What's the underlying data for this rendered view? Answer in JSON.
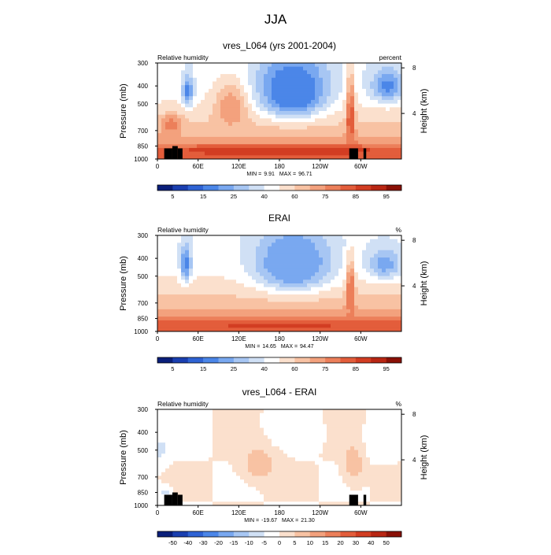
{
  "figure_title": "JJA",
  "colors": {
    "rh_scale": [
      "#0a1f7a",
      "#1a3fb0",
      "#2f63d4",
      "#4b86e8",
      "#79a8f0",
      "#a7c6f3",
      "#d0e0f5",
      "#ffffff",
      "#fbe0cd",
      "#f8c2a3",
      "#f3a17d",
      "#ec7f5a",
      "#e35d3b",
      "#d23d22",
      "#b82613",
      "#8a1006"
    ],
    "diff_scale": [
      "#0a1f7a",
      "#1a3fb0",
      "#2f63d4",
      "#4b86e8",
      "#79a8f0",
      "#a7c6f3",
      "#d0e0f5",
      "#ffffff",
      "#fbe0cd",
      "#f8c2a3",
      "#f3a17d",
      "#ec7f5a",
      "#e35d3b",
      "#d23d22",
      "#b82613",
      "#8a1006"
    ],
    "terrain": "#000000"
  },
  "chart_data": [
    {
      "type": "heatmap",
      "title": "vres_L064 (yrs 2001-2004)",
      "left_label": "Relative humidity",
      "right_label": "percent",
      "ylabel": "Pressure (mb)",
      "right_axis_label": "Height (km)",
      "x_ticks": [
        "0",
        "60E",
        "120E",
        "180",
        "120W",
        "60W"
      ],
      "x_tick_values": [
        0,
        60,
        120,
        180,
        240,
        300
      ],
      "xlim": [
        0,
        360
      ],
      "y_ticks": [
        "300",
        "400",
        "500",
        "700",
        "850",
        "1000"
      ],
      "y_tick_values": [
        300,
        400,
        500,
        700,
        850,
        1000
      ],
      "ylim": [
        300,
        1000
      ],
      "height_ticks": [
        "8",
        "4"
      ],
      "height_tick_values": [
        8,
        4
      ],
      "colorbar_labels": [
        "5",
        "15",
        "25",
        "40",
        "60",
        "75",
        "85",
        "95"
      ],
      "min_label": "MIN =",
      "min_value": "9.91",
      "max_label": "MAX =",
      "max_value": "96.71",
      "features": [
        {
          "lon": 45,
          "p": 430,
          "v": 20,
          "rx": 8,
          "rp": 80
        },
        {
          "lon": 20,
          "p": 650,
          "v": 75,
          "rx": 15,
          "rp": 80
        },
        {
          "lon": 110,
          "p": 520,
          "v": 70,
          "rx": 25,
          "rp": 150
        },
        {
          "lon": 200,
          "p": 440,
          "v": 10,
          "rx": 35,
          "rp": 120
        },
        {
          "lon": 200,
          "p": 400,
          "v": 18,
          "rx": 50,
          "rp": 150
        },
        {
          "lon": 285,
          "p": 600,
          "v": 85,
          "rx": 6,
          "rp": 250
        },
        {
          "lon": 340,
          "p": 400,
          "v": 20,
          "rx": 25,
          "rp": 80
        },
        {
          "lon": 180,
          "p": 900,
          "v": 90,
          "rx": 200,
          "rp": 60
        }
      ],
      "terrain": [
        {
          "lon0": 10,
          "lon1": 22,
          "p_top": 875
        },
        {
          "lon0": 22,
          "lon1": 30,
          "p_top": 850
        },
        {
          "lon0": 30,
          "lon1": 37,
          "p_top": 875
        },
        {
          "lon0": 283,
          "lon1": 296,
          "p_top": 875
        },
        {
          "lon0": 304,
          "lon1": 308,
          "p_top": 875
        }
      ]
    },
    {
      "type": "heatmap",
      "title": "ERAI",
      "left_label": "Relative humidity",
      "right_label": "%",
      "ylabel": "Pressure (mb)",
      "right_axis_label": "Height (km)",
      "x_ticks": [
        "0",
        "60E",
        "120E",
        "180",
        "120W",
        "60W"
      ],
      "x_tick_values": [
        0,
        60,
        120,
        180,
        240,
        300
      ],
      "xlim": [
        0,
        360
      ],
      "y_ticks": [
        "300",
        "400",
        "500",
        "700",
        "850",
        "1000"
      ],
      "y_tick_values": [
        300,
        400,
        500,
        700,
        850,
        1000
      ],
      "ylim": [
        300,
        1000
      ],
      "height_ticks": [
        "8",
        "4"
      ],
      "height_tick_values": [
        8,
        4
      ],
      "colorbar_labels": [
        "5",
        "15",
        "25",
        "40",
        "60",
        "75",
        "85",
        "95"
      ],
      "min_label": "MIN =",
      "min_value": "14.65",
      "max_label": "MAX =",
      "max_value": "94.47",
      "features": [
        {
          "lon": 42,
          "p": 430,
          "v": 20,
          "rx": 8,
          "rp": 100
        },
        {
          "lon": 200,
          "p": 430,
          "v": 15,
          "rx": 40,
          "rp": 120
        },
        {
          "lon": 200,
          "p": 420,
          "v": 25,
          "rx": 55,
          "rp": 160
        },
        {
          "lon": 335,
          "p": 430,
          "v": 25,
          "rx": 25,
          "rp": 80
        },
        {
          "lon": 285,
          "p": 600,
          "v": 80,
          "rx": 6,
          "rp": 200
        },
        {
          "lon": 180,
          "p": 920,
          "v": 85,
          "rx": 200,
          "rp": 60
        }
      ],
      "terrain": []
    },
    {
      "type": "heatmap",
      "title": "vres_L064 - ERAI",
      "left_label": "Relative humidity",
      "right_label": "%",
      "ylabel": "Pressure (mb)",
      "right_axis_label": "Height (km)",
      "x_ticks": [
        "0",
        "60E",
        "120E",
        "180",
        "120W",
        "60W"
      ],
      "x_tick_values": [
        0,
        60,
        120,
        180,
        240,
        300
      ],
      "xlim": [
        0,
        360
      ],
      "y_ticks": [
        "300",
        "400",
        "500",
        "700",
        "850",
        "1000"
      ],
      "y_tick_values": [
        300,
        400,
        500,
        700,
        850,
        1000
      ],
      "ylim": [
        300,
        1000
      ],
      "height_ticks": [
        "8",
        "4"
      ],
      "height_tick_values": [
        8,
        4
      ],
      "colorbar_labels": [
        "-50",
        "-40",
        "-30",
        "-20",
        "-15",
        "-10",
        "-5",
        "0",
        "5",
        "10",
        "15",
        "20",
        "30",
        "40",
        "50"
      ],
      "min_label": "MIN =",
      "min_value": "-19.67",
      "max_label": "MAX =",
      "max_value": "21.30",
      "features": [
        {
          "lon": 150,
          "p": 600,
          "v": 12,
          "rx": 25,
          "rp": 130
        },
        {
          "lon": 290,
          "p": 600,
          "v": 12,
          "rx": 15,
          "rp": 150
        },
        {
          "lon": 5,
          "p": 500,
          "v": -8,
          "rx": 10,
          "rp": 100
        },
        {
          "lon": 10,
          "p": 850,
          "v": -10,
          "rx": 10,
          "rp": 60
        },
        {
          "lon": 200,
          "p": 400,
          "v": -4,
          "rx": 40,
          "rp": 80
        },
        {
          "lon": 330,
          "p": 450,
          "v": -5,
          "rx": 30,
          "rp": 100
        }
      ],
      "terrain": [
        {
          "lon0": 10,
          "lon1": 22,
          "p_top": 875
        },
        {
          "lon0": 22,
          "lon1": 30,
          "p_top": 850
        },
        {
          "lon0": 30,
          "lon1": 37,
          "p_top": 875
        },
        {
          "lon0": 283,
          "lon1": 296,
          "p_top": 875
        },
        {
          "lon0": 304,
          "lon1": 308,
          "p_top": 875
        }
      ]
    }
  ]
}
